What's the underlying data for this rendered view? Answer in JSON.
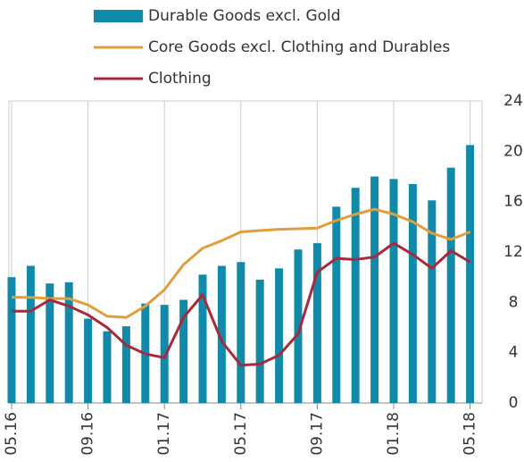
{
  "chart_data": {
    "type": "combo",
    "categories": [
      "05.16",
      null,
      null,
      null,
      "09.16",
      null,
      null,
      null,
      "01.17",
      null,
      null,
      null,
      "05.17",
      null,
      null,
      null,
      "09.17",
      null,
      null,
      null,
      "01.18",
      null,
      null,
      null,
      "05.18"
    ],
    "series": [
      {
        "name": "Durable Goods excl. Gold",
        "type": "bar",
        "color": "#118aa9",
        "values": [
          10.0,
          10.9,
          9.5,
          9.6,
          6.7,
          5.7,
          6.1,
          7.9,
          7.8,
          8.2,
          10.2,
          10.9,
          11.2,
          9.8,
          10.7,
          12.2,
          12.7,
          15.6,
          17.1,
          18.0,
          17.8,
          17.4,
          16.1,
          18.7,
          20.5
        ]
      },
      {
        "name": "Core Goods excl. Clothing and Durables",
        "type": "line",
        "color": "#e09e3c",
        "values": [
          8.4,
          8.4,
          8.3,
          8.3,
          7.8,
          6.9,
          6.8,
          7.7,
          9.0,
          11.0,
          12.3,
          12.9,
          13.6,
          13.7,
          13.8,
          13.85,
          13.9,
          14.5,
          15.0,
          15.4,
          15.0,
          14.4,
          13.5,
          13.0,
          13.6
        ]
      },
      {
        "name": "Clothing",
        "type": "line",
        "color": "#a8293a",
        "values": [
          7.3,
          7.3,
          8.2,
          7.7,
          7.0,
          6.0,
          4.6,
          3.9,
          3.6,
          6.8,
          8.6,
          4.9,
          3.0,
          3.1,
          3.8,
          5.5,
          10.4,
          11.5,
          11.4,
          11.6,
          12.7,
          11.8,
          10.7,
          12.1,
          11.2
        ]
      }
    ],
    "ylim": [
      0,
      24
    ],
    "yticks": [
      0,
      4,
      8,
      12,
      16,
      20,
      24
    ],
    "grid": true
  }
}
